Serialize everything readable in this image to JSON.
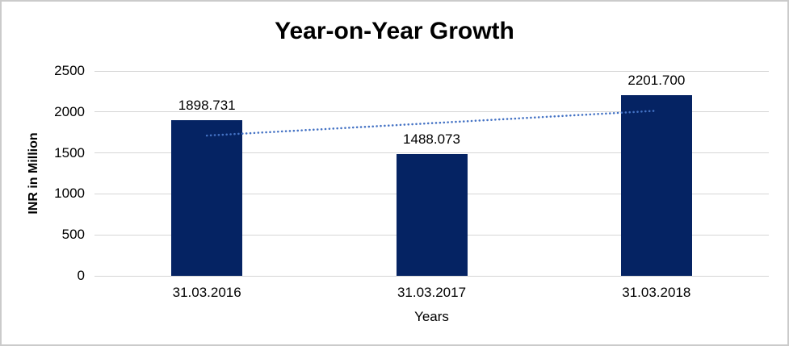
{
  "chart_data": {
    "type": "bar",
    "title": "Year-on-Year Growth",
    "xlabel": "Years",
    "ylabel": "INR in Million",
    "categories": [
      "31.03.2016",
      "31.03.2017",
      "31.03.2018"
    ],
    "values": [
      1898.731,
      1488.073,
      2201.7
    ],
    "value_labels": [
      "1898.731",
      "1488.073",
      "2201.700"
    ],
    "yticks": [
      0,
      500,
      1000,
      1500,
      2000,
      2500
    ],
    "ylim": [
      0,
      2500
    ],
    "grid": true,
    "legend": "none",
    "bar_color": "#052363",
    "gridline_color": "#d6d6d6",
    "frame_border_color": "#cbcbcb",
    "trendline": {
      "style": "dotted",
      "color": "#4472C4",
      "start_value": 1711.4,
      "end_value": 2014.3
    }
  }
}
